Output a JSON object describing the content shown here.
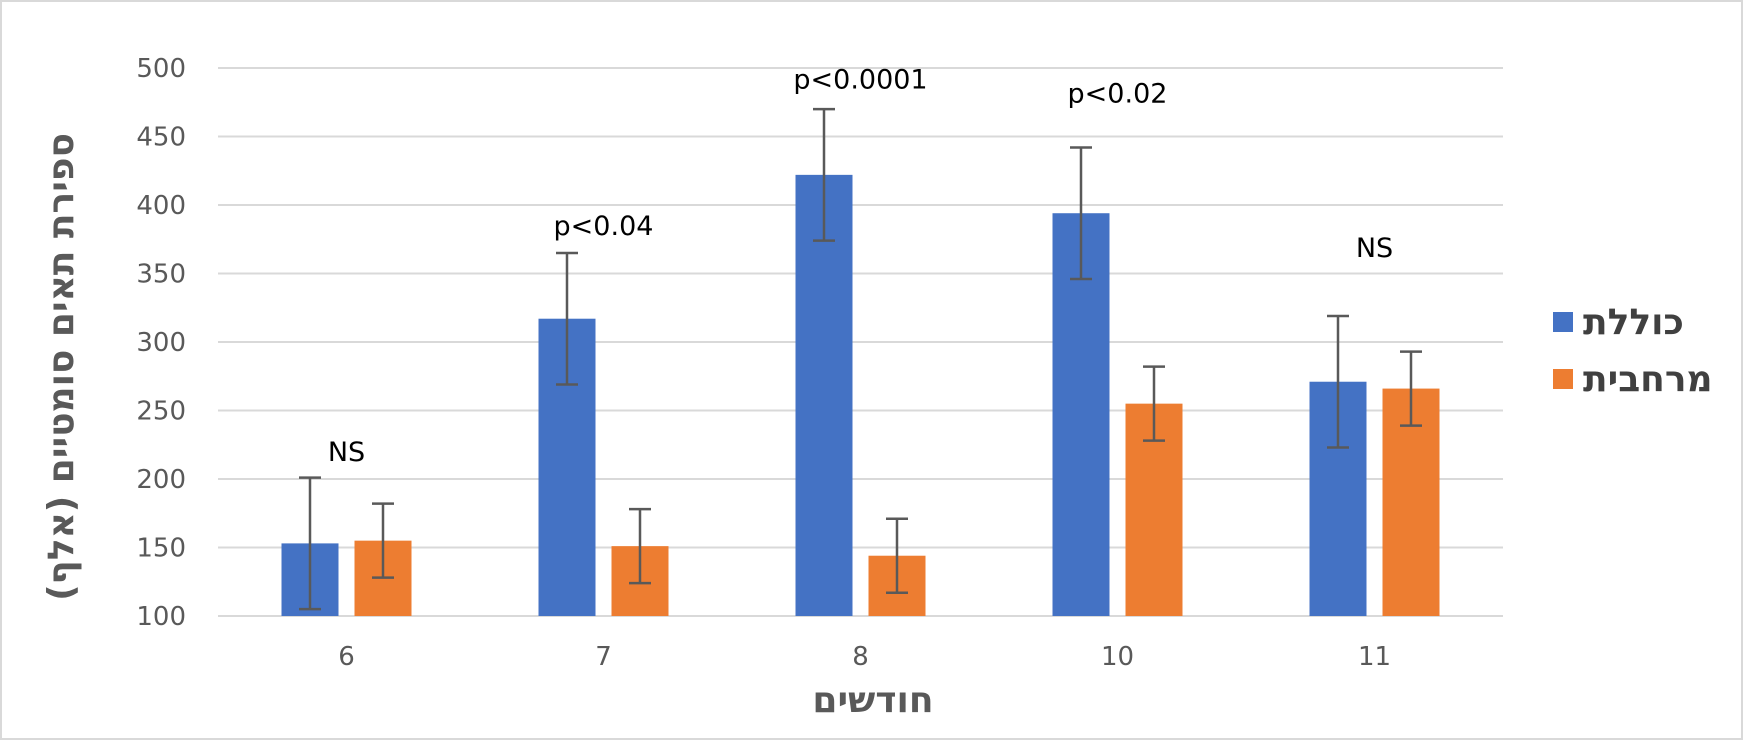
{
  "chart_data": {
    "type": "bar",
    "title": "",
    "xlabel": "חודשים",
    "ylabel": "ספירת תאים סומטיים (אלף)",
    "categories": [
      "6",
      "7",
      "8",
      "10",
      "11"
    ],
    "ylim": [
      100,
      500
    ],
    "yticks": [
      100,
      150,
      200,
      250,
      300,
      350,
      400,
      450,
      500
    ],
    "grid": true,
    "legend_position": "right",
    "series": [
      {
        "name": "כוללת",
        "color": "#4472C4",
        "values": [
          153,
          317,
          422,
          394,
          271
        ],
        "error": [
          48,
          48,
          48,
          48,
          48
        ]
      },
      {
        "name": "מרחבית",
        "color": "#ED7D31",
        "values": [
          155,
          151,
          144,
          255,
          266
        ],
        "error": [
          27,
          27,
          27,
          27,
          27
        ]
      }
    ],
    "annotations": [
      {
        "category": "6",
        "text": "NS",
        "y": 213
      },
      {
        "category": "7",
        "text": "p<0.04",
        "y": 378
      },
      {
        "category": "8",
        "text": "p<0.0001",
        "y": 485
      },
      {
        "category": "10",
        "text": "p<0.02",
        "y": 475
      },
      {
        "category": "11",
        "text": "NS",
        "y": 362
      }
    ]
  }
}
